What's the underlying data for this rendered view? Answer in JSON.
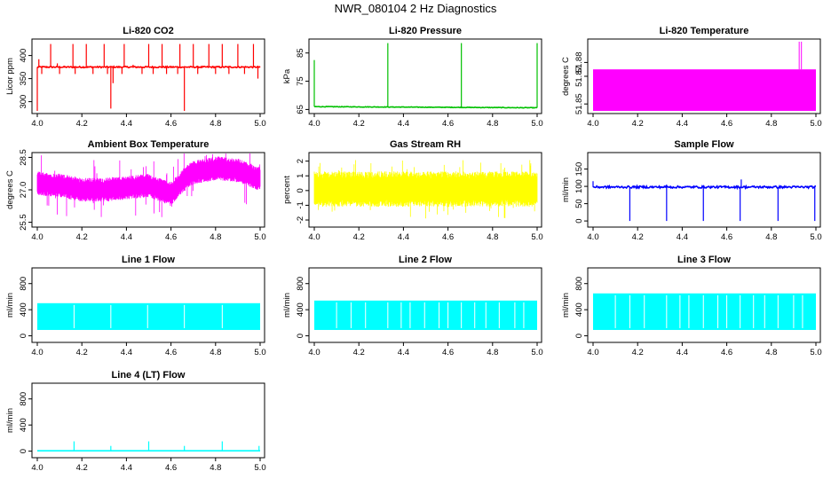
{
  "title": "NWR_080104  2 Hz Diagnostics",
  "chart_data": [
    {
      "type": "line",
      "title": "Li-820 CO2",
      "ylabel": "Licor ppm",
      "color": "#ff0000",
      "xlim": [
        4.0,
        5.0
      ],
      "x_ticks": [
        "4.0",
        "4.2",
        "4.4",
        "4.6",
        "4.8",
        "5.0"
      ],
      "ylim": [
        280,
        430
      ],
      "y_ticks": [
        {
          "v": 300,
          "label": "300"
        },
        {
          "v": 350,
          "label": "350"
        },
        {
          "v": 400,
          "label": "400"
        }
      ],
      "series": [
        {
          "baseline": 375,
          "noise": 1.5,
          "dense": false,
          "spikes": [
            {
              "x": 4.0,
              "y": 280
            },
            {
              "x": 4.007,
              "y": 392
            },
            {
              "x": 4.02,
              "y": 360
            },
            {
              "x": 4.06,
              "y": 425
            },
            {
              "x": 4.09,
              "y": 383
            },
            {
              "x": 4.1,
              "y": 360
            },
            {
              "x": 4.16,
              "y": 425
            },
            {
              "x": 4.17,
              "y": 360
            },
            {
              "x": 4.22,
              "y": 425
            },
            {
              "x": 4.25,
              "y": 360
            },
            {
              "x": 4.3,
              "y": 425
            },
            {
              "x": 4.315,
              "y": 360
            },
            {
              "x": 4.33,
              "y": 285
            },
            {
              "x": 4.34,
              "y": 340
            },
            {
              "x": 4.38,
              "y": 360
            },
            {
              "x": 4.39,
              "y": 425
            },
            {
              "x": 4.43,
              "y": 380
            },
            {
              "x": 4.47,
              "y": 360
            },
            {
              "x": 4.5,
              "y": 425
            },
            {
              "x": 4.52,
              "y": 360
            },
            {
              "x": 4.56,
              "y": 425
            },
            {
              "x": 4.58,
              "y": 360
            },
            {
              "x": 4.63,
              "y": 360
            },
            {
              "x": 4.64,
              "y": 425
            },
            {
              "x": 4.66,
              "y": 280
            },
            {
              "x": 4.7,
              "y": 425
            },
            {
              "x": 4.72,
              "y": 360
            },
            {
              "x": 4.77,
              "y": 425
            },
            {
              "x": 4.8,
              "y": 360
            },
            {
              "x": 4.83,
              "y": 425
            },
            {
              "x": 4.86,
              "y": 360
            },
            {
              "x": 4.9,
              "y": 425
            },
            {
              "x": 4.93,
              "y": 360
            },
            {
              "x": 4.97,
              "y": 425
            },
            {
              "x": 4.99,
              "y": 350
            }
          ]
        }
      ]
    },
    {
      "type": "line",
      "title": "Li-820 Pressure",
      "ylabel": "kPa",
      "color": "#00c000",
      "xlim": [
        4.0,
        5.0
      ],
      "x_ticks": [
        "4.0",
        "4.2",
        "4.4",
        "4.6",
        "4.8",
        "5.0"
      ],
      "ylim": [
        64.5,
        89
      ],
      "y_ticks": [
        {
          "v": 65,
          "label": "65"
        },
        {
          "v": 75,
          "label": "75"
        },
        {
          "v": 85,
          "label": "85"
        }
      ],
      "series": [
        {
          "baseline": 66.0,
          "noise": 0.1,
          "dense": false,
          "trend_end": 65.6,
          "spikes": [
            {
              "x": 4.0,
              "y": 82.5
            },
            {
              "x": 4.33,
              "y": 88.5
            },
            {
              "x": 4.66,
              "y": 88.5
            },
            {
              "x": 5.0,
              "y": 88.5
            }
          ]
        }
      ]
    },
    {
      "type": "area",
      "title": "Li-820 Temperature",
      "ylabel": "degrees C",
      "color": "#ff00ff",
      "xlim": [
        4.0,
        5.0
      ],
      "x_ticks": [
        "4.0",
        "4.2",
        "4.4",
        "4.6",
        "4.8",
        "5.0"
      ],
      "ylim": [
        51.845,
        51.895
      ],
      "y_ticks": [
        {
          "v": 51.85,
          "label": "51.85"
        },
        {
          "v": 51.87,
          "label": "51.87"
        },
        {
          "v": 51.88,
          "label": "51.88"
        }
      ],
      "series": [
        {
          "fill_low": 51.845,
          "fill_high": 51.875,
          "spikes": [
            {
              "x": 4.925,
              "y": 51.895
            },
            {
              "x": 4.935,
              "y": 51.895
            }
          ]
        }
      ]
    },
    {
      "type": "line",
      "title": "Ambient Box Temperature",
      "ylabel": "degrees C",
      "color": "#ff00ff",
      "xlim": [
        4.0,
        5.0
      ],
      "x_ticks": [
        "4.0",
        "4.2",
        "4.4",
        "4.6",
        "4.8",
        "5.0"
      ],
      "ylim": [
        25.4,
        28.6
      ],
      "y_ticks": [
        {
          "v": 25.5,
          "label": "25.5"
        },
        {
          "v": 27.0,
          "label": "27.0"
        },
        {
          "v": 28.5,
          "label": "28.5"
        }
      ],
      "series": [
        {
          "dense": true,
          "profile": [
            [
              4.0,
              27.3
            ],
            [
              4.1,
              27.2
            ],
            [
              4.2,
              27.0
            ],
            [
              4.3,
              27.0
            ],
            [
              4.4,
              27.1
            ],
            [
              4.5,
              27.2
            ],
            [
              4.6,
              26.8
            ],
            [
              4.65,
              27.4
            ],
            [
              4.7,
              27.8
            ],
            [
              4.8,
              28.0
            ],
            [
              4.9,
              27.9
            ],
            [
              5.0,
              27.5
            ]
          ],
          "spread": 0.55,
          "outliers": 0.9
        }
      ]
    },
    {
      "type": "line",
      "title": "Gas Stream RH",
      "ylabel": "percent",
      "color": "#ffff00",
      "xlim": [
        4.0,
        5.0
      ],
      "x_ticks": [
        "4.0",
        "4.2",
        "4.4",
        "4.6",
        "4.8",
        "5.0"
      ],
      "ylim": [
        -2.3,
        2.4
      ],
      "y_ticks": [
        {
          "v": -2,
          "label": "-2"
        },
        {
          "v": -1,
          "label": "-1"
        },
        {
          "v": 0,
          "label": "0"
        },
        {
          "v": 1,
          "label": "1"
        },
        {
          "v": 2,
          "label": "2"
        }
      ],
      "series": [
        {
          "dense": true,
          "profile": [
            [
              4.0,
              0.1
            ],
            [
              5.0,
              0.1
            ]
          ],
          "spread": 1.2,
          "outliers": 0.8
        }
      ]
    },
    {
      "type": "line",
      "title": "Sample Flow",
      "ylabel": "ml/min",
      "color": "#0000ff",
      "xlim": [
        4.0,
        5.0
      ],
      "x_ticks": [
        "4.0",
        "4.2",
        "4.4",
        "4.6",
        "4.8",
        "5.0"
      ],
      "ylim": [
        -10,
        190
      ],
      "y_ticks": [
        {
          "v": 0,
          "label": "0"
        },
        {
          "v": 50,
          "label": "50"
        },
        {
          "v": 100,
          "label": "100"
        },
        {
          "v": 150,
          "label": "150"
        }
      ],
      "series": [
        {
          "baseline": 98,
          "noise": 3,
          "dense": false,
          "spikes": [
            {
              "x": 4.0,
              "y": 115
            },
            {
              "x": 4.165,
              "y": 0
            },
            {
              "x": 4.33,
              "y": 0
            },
            {
              "x": 4.33,
              "y": 105
            },
            {
              "x": 4.495,
              "y": 0
            },
            {
              "x": 4.66,
              "y": 0
            },
            {
              "x": 4.665,
              "y": 120
            },
            {
              "x": 4.83,
              "y": 0
            },
            {
              "x": 4.995,
              "y": 0
            }
          ]
        }
      ]
    },
    {
      "type": "area",
      "title": "Line 1 Flow",
      "ylabel": "ml/min",
      "color": "#00ffff",
      "xlim": [
        4.0,
        5.0
      ],
      "x_ticks": [
        "4.0",
        "4.2",
        "4.4",
        "4.6",
        "4.8",
        "5.0"
      ],
      "ylim": [
        -60,
        1000
      ],
      "y_ticks": [
        {
          "v": 0,
          "label": "0"
        },
        {
          "v": 400,
          "label": "400"
        },
        {
          "v": 800,
          "label": "800"
        }
      ],
      "series": [
        {
          "fill_low": 90,
          "fill_high": 500,
          "gaps": [
            4.165,
            4.33,
            4.495,
            4.66,
            4.83
          ]
        }
      ]
    },
    {
      "type": "area",
      "title": "Line 2 Flow",
      "ylabel": "ml/min",
      "color": "#00ffff",
      "xlim": [
        4.0,
        5.0
      ],
      "x_ticks": [
        "4.0",
        "4.2",
        "4.4",
        "4.6",
        "4.8",
        "5.0"
      ],
      "ylim": [
        -60,
        1000
      ],
      "y_ticks": [
        {
          "v": 0,
          "label": "0"
        },
        {
          "v": 400,
          "label": "400"
        },
        {
          "v": 800,
          "label": "800"
        }
      ],
      "series": [
        {
          "fill_low": 90,
          "fill_high": 540,
          "gaps": [
            4.165,
            4.33,
            4.495,
            4.66,
            4.83,
            4.1,
            4.23,
            4.39,
            4.43,
            4.56,
            4.6,
            4.72,
            4.77,
            4.9,
            4.94
          ]
        }
      ]
    },
    {
      "type": "area",
      "title": "Line 3 Flow",
      "ylabel": "ml/min",
      "color": "#00ffff",
      "xlim": [
        4.0,
        5.0
      ],
      "x_ticks": [
        "4.0",
        "4.2",
        "4.4",
        "4.6",
        "4.8",
        "5.0"
      ],
      "ylim": [
        -60,
        1000
      ],
      "y_ticks": [
        {
          "v": 0,
          "label": "0"
        },
        {
          "v": 400,
          "label": "400"
        },
        {
          "v": 800,
          "label": "800"
        }
      ],
      "series": [
        {
          "fill_low": 90,
          "fill_high": 650,
          "gaps": [
            4.165,
            4.33,
            4.495,
            4.66,
            4.83,
            4.1,
            4.23,
            4.39,
            4.43,
            4.56,
            4.6,
            4.72,
            4.77,
            4.9,
            4.94
          ]
        }
      ]
    },
    {
      "type": "line",
      "title": "Line 4 (LT) Flow",
      "ylabel": "ml/min",
      "color": "#00ffff",
      "xlim": [
        4.0,
        5.0
      ],
      "x_ticks": [
        "4.0",
        "4.2",
        "4.4",
        "4.6",
        "4.8",
        "5.0"
      ],
      "ylim": [
        -60,
        1000
      ],
      "y_ticks": [
        {
          "v": 0,
          "label": "0"
        },
        {
          "v": 400,
          "label": "400"
        },
        {
          "v": 800,
          "label": "800"
        }
      ],
      "series": [
        {
          "baseline": 5,
          "noise": 0,
          "dense": false,
          "spikes": [
            {
              "x": 4.165,
              "y": 150
            },
            {
              "x": 4.33,
              "y": 80
            },
            {
              "x": 4.5,
              "y": 150
            },
            {
              "x": 4.66,
              "y": 80
            },
            {
              "x": 4.83,
              "y": 150
            },
            {
              "x": 4.995,
              "y": 80
            }
          ]
        }
      ]
    }
  ]
}
